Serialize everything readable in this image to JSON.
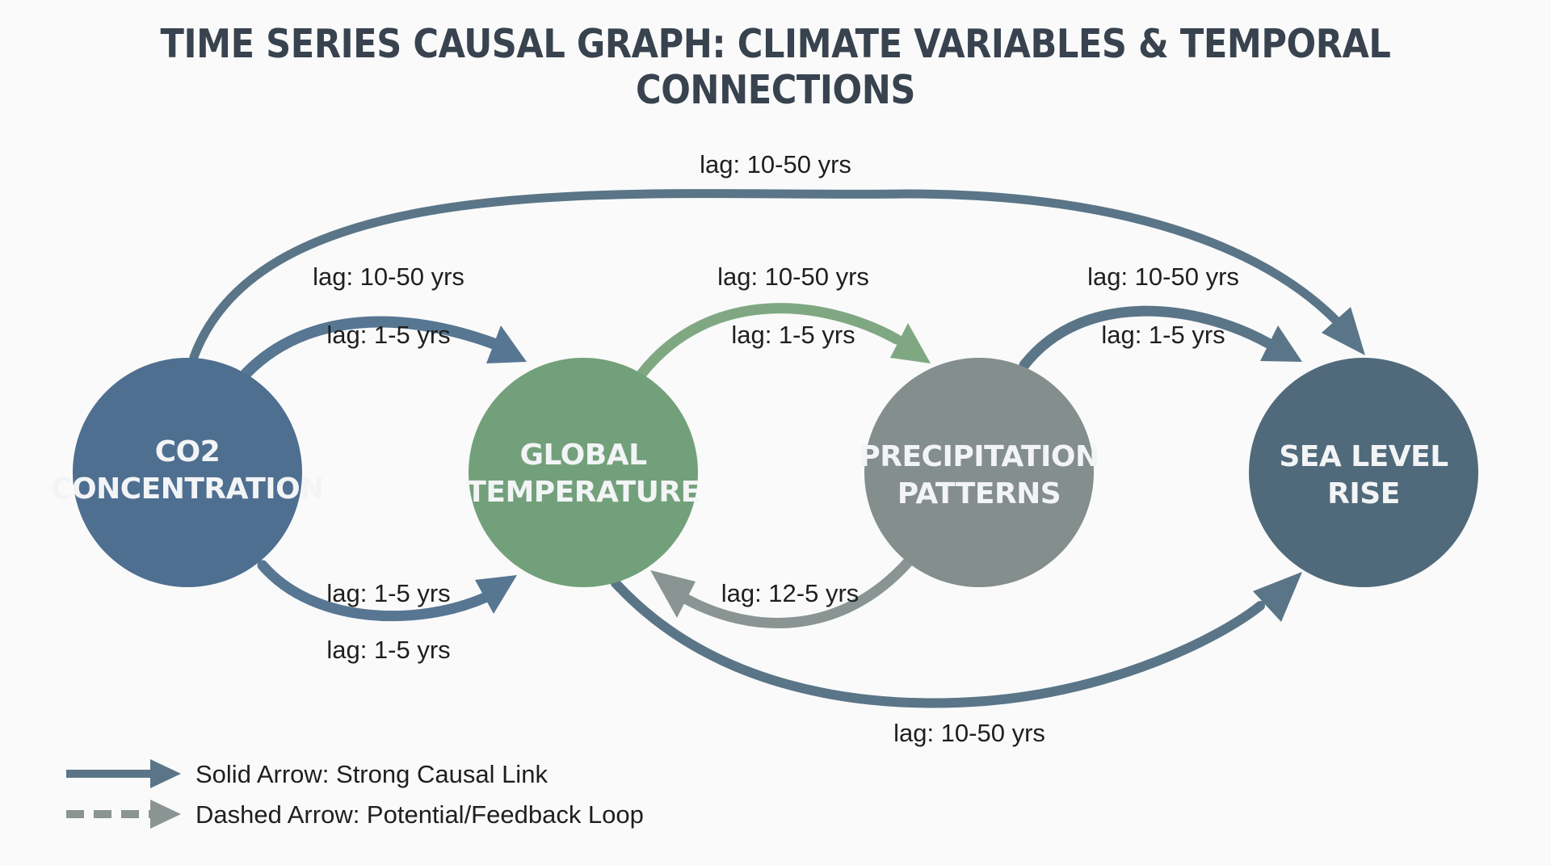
{
  "title": "TIME SERIES CAUSAL GRAPH: CLIMATE VARIABLES & TEMPORAL CONNECTIONS",
  "colors": {
    "co2": "#4f6f91",
    "temperature": "#72a07a",
    "precipitation": "#848e8c",
    "sea_level": "#506a7b",
    "edge_blue": "#577692",
    "edge_slate": "#5a7587",
    "edge_green": "#7fa882",
    "edge_gray": "#8a9593"
  },
  "nodes": {
    "co2": {
      "line1": "CO2",
      "line2": "CONCENTRATION"
    },
    "temperature": {
      "line1": "GLOBAL",
      "line2": "TEMPERATURE"
    },
    "precipitation": {
      "line1": "PRECIPITATION",
      "line2": "PATTERNS"
    },
    "sea_level": {
      "line1": "SEA LEVEL",
      "line2": "RISE"
    }
  },
  "edges": {
    "co2_to_sea_top": "lag: 10-50 yrs",
    "co2_to_temp_top_outer": "lag: 10-50 yrs",
    "co2_to_temp_top_inner": "lag: 1-5 yrs",
    "temp_to_precip_outer": "lag: 10-50 yrs",
    "temp_to_precip_inner": "lag: 1-5 yrs",
    "precip_to_sea_outer": "lag: 10-50 yrs",
    "precip_to_sea_inner": "lag: 1-5 yrs",
    "co2_to_temp_bottom_upper": "lag: 1-5 yrs",
    "co2_to_temp_bottom_lower": "lag: 1-5 yrs",
    "precip_to_temp_feedback": "lag: 12-5 yrs",
    "temp_to_sea_bottom": "lag: 10-50 yrs"
  },
  "legend": {
    "solid": "Solid Arrow: Strong Causal Link",
    "dashed": "Dashed Arrow: Potential/Feedback Loop"
  }
}
